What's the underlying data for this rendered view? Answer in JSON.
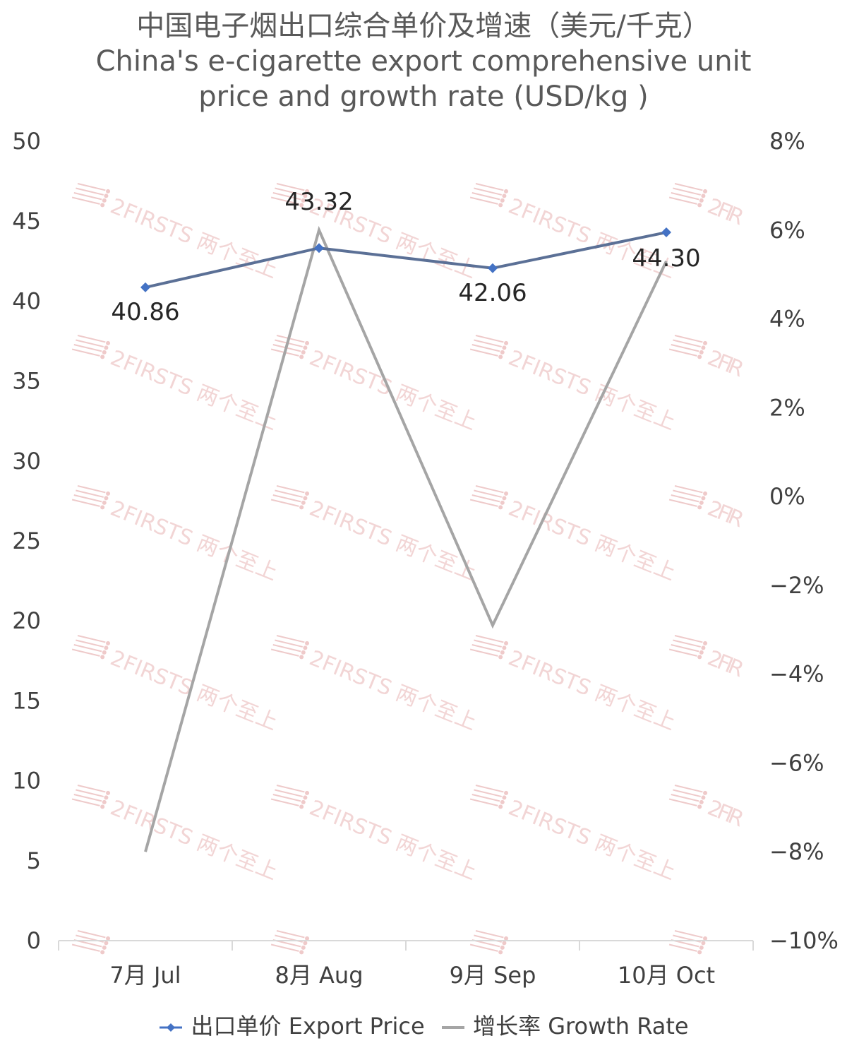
{
  "chart_data": {
    "type": "line",
    "title": "中国电子烟出口综合单价及增速（美元/千克）",
    "subtitle_line1": "China's e-cigarette export comprehensive unit",
    "subtitle_line2": "price and growth rate (USD/kg )",
    "categories": [
      "7月 Jul",
      "8月 Aug",
      "9月 Sep",
      "10月 Oct"
    ],
    "series": [
      {
        "name": "出口单价 Export Price",
        "axis": "left",
        "values": [
          40.86,
          43.32,
          42.06,
          44.3
        ],
        "labels": [
          "40.86",
          "43.32",
          "42.06",
          "44.30"
        ],
        "color": "#4472c4",
        "marker": "diamond"
      },
      {
        "name": "增长率 Growth Rate",
        "axis": "right",
        "values": [
          -8.0,
          6.0,
          -2.9,
          5.3
        ],
        "color": "#a5a5a5",
        "marker": "none"
      }
    ],
    "y_left": {
      "min": 0,
      "max": 50,
      "step": 5,
      "ticks": [
        "0",
        "5",
        "10",
        "15",
        "20",
        "25",
        "30",
        "35",
        "40",
        "45",
        "50"
      ]
    },
    "y_right": {
      "min": -10,
      "max": 8,
      "step": 2,
      "ticks": [
        "−10%",
        "−8%",
        "−6%",
        "−4%",
        "−2%",
        "0%",
        "2%",
        "4%",
        "6%",
        "8%"
      ]
    },
    "grid": false,
    "legend_position": "bottom"
  },
  "watermark": {
    "text": "2FIRSTS 两个至上"
  },
  "colors": {
    "price_line": "#4472c4",
    "growth_line": "#a5a5a5",
    "axis": "#d9d9d9",
    "watermark": "#e8b4b4"
  }
}
